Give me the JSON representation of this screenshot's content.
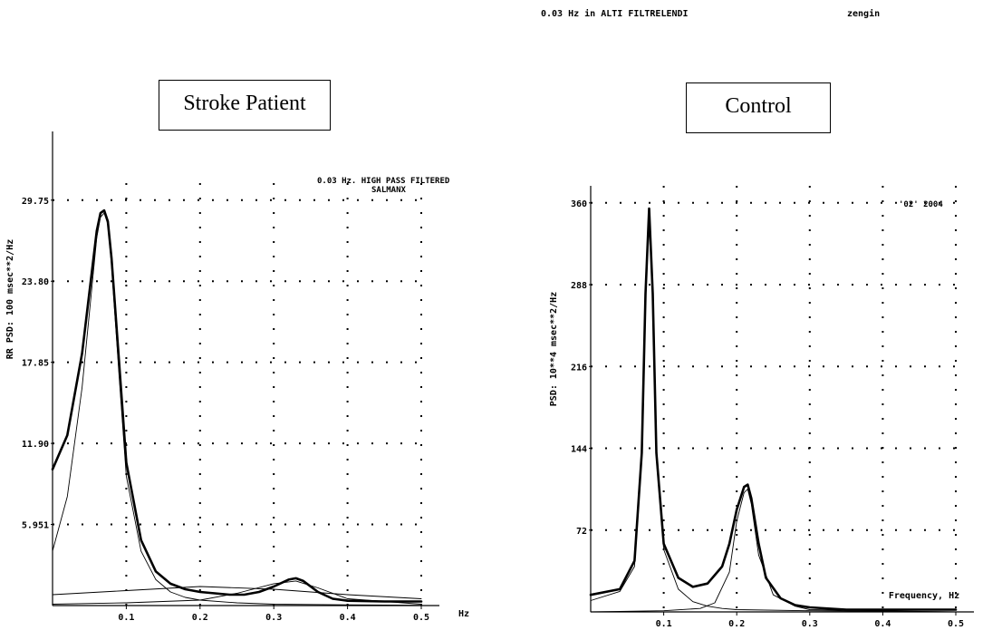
{
  "top_header": {
    "left": "0.03 Hz in ALTI FILTRELENDI",
    "right": "zengin"
  },
  "chart_data": [
    {
      "type": "line",
      "title": "Stroke Patient",
      "annotation": "0.03 Hz. HIGH PASS FILTERED",
      "annotation_sub": "SALMANX",
      "ylabel": "RR PSD: 100 msec**2/Hz",
      "xlabel": "Hz",
      "ylim": [
        0,
        31
      ],
      "xlim": [
        0,
        0.5
      ],
      "x_ticks": [
        "0.1",
        "0.2",
        "0.3",
        "0.4",
        "0.5"
      ],
      "y_ticks": [
        "5.951",
        "11.90",
        "17.85",
        "23.80",
        "29.75"
      ],
      "y_tick_values": [
        5.951,
        11.9,
        17.85,
        23.8,
        29.75
      ],
      "grid": true,
      "series": [
        {
          "style": "thick",
          "x": [
            0.0,
            0.02,
            0.04,
            0.05,
            0.06,
            0.065,
            0.07,
            0.075,
            0.08,
            0.09,
            0.1,
            0.12,
            0.14,
            0.16,
            0.18,
            0.2,
            0.22,
            0.24,
            0.26,
            0.28,
            0.3,
            0.32,
            0.33,
            0.34,
            0.36,
            0.38,
            0.4,
            0.45,
            0.5
          ],
          "y": [
            10.0,
            12.5,
            18.5,
            23.0,
            27.5,
            28.8,
            29.0,
            28.2,
            25.5,
            18.0,
            10.5,
            4.8,
            2.5,
            1.6,
            1.2,
            1.0,
            0.9,
            0.8,
            0.8,
            1.0,
            1.4,
            1.9,
            2.0,
            1.8,
            1.0,
            0.5,
            0.35,
            0.3,
            0.3
          ]
        },
        {
          "style": "thin",
          "x": [
            0.0,
            0.02,
            0.04,
            0.05,
            0.06,
            0.065,
            0.07,
            0.075,
            0.08,
            0.09,
            0.1,
            0.12,
            0.14,
            0.16,
            0.18,
            0.2,
            0.25,
            0.3,
            0.4,
            0.5
          ],
          "y": [
            4.0,
            8.0,
            16.0,
            21.5,
            27.0,
            28.5,
            28.8,
            28.0,
            25.0,
            17.0,
            9.5,
            4.0,
            1.9,
            1.0,
            0.6,
            0.4,
            0.2,
            0.1,
            0.05,
            0.02
          ]
        },
        {
          "style": "thin",
          "x": [
            0.0,
            0.1,
            0.2,
            0.3,
            0.4,
            0.5
          ],
          "y": [
            0.8,
            1.1,
            1.4,
            1.2,
            0.8,
            0.5
          ]
        },
        {
          "style": "thin",
          "x": [
            0.0,
            0.1,
            0.2,
            0.25,
            0.3,
            0.33,
            0.36,
            0.4,
            0.5
          ],
          "y": [
            0.1,
            0.2,
            0.4,
            0.9,
            1.6,
            1.8,
            1.3,
            0.5,
            0.1
          ]
        }
      ]
    },
    {
      "type": "line",
      "title": "Control",
      "ylabel": "PSD: 10**4 msec**2/Hz",
      "xlabel": "Frequency, Hz",
      "annotation": "'02' 2004",
      "ylim": [
        0,
        375
      ],
      "xlim": [
        0,
        0.5
      ],
      "x_ticks": [
        "0.1",
        "0.2",
        "0.3",
        "0.4",
        "0.5"
      ],
      "y_ticks": [
        "72",
        "144",
        "216",
        "288",
        "360"
      ],
      "y_tick_values": [
        72,
        144,
        216,
        288,
        360
      ],
      "grid": true,
      "series": [
        {
          "style": "thick",
          "x": [
            0.0,
            0.04,
            0.06,
            0.07,
            0.075,
            0.08,
            0.085,
            0.09,
            0.1,
            0.12,
            0.14,
            0.16,
            0.18,
            0.19,
            0.2,
            0.21,
            0.215,
            0.22,
            0.23,
            0.24,
            0.26,
            0.28,
            0.3,
            0.35,
            0.4,
            0.5
          ],
          "y": [
            15,
            20,
            45,
            140,
            280,
            355,
            280,
            140,
            60,
            30,
            22,
            25,
            40,
            60,
            90,
            110,
            112,
            100,
            60,
            30,
            12,
            6,
            4,
            2,
            2,
            2
          ]
        },
        {
          "style": "thin",
          "x": [
            0.0,
            0.04,
            0.06,
            0.07,
            0.075,
            0.08,
            0.085,
            0.09,
            0.1,
            0.12,
            0.14,
            0.16,
            0.18,
            0.2,
            0.3,
            0.5
          ],
          "y": [
            10,
            18,
            40,
            135,
            275,
            350,
            275,
            135,
            55,
            20,
            9,
            5,
            3,
            2,
            1,
            0
          ]
        },
        {
          "style": "thin",
          "x": [
            0.0,
            0.1,
            0.15,
            0.17,
            0.19,
            0.2,
            0.21,
            0.215,
            0.22,
            0.23,
            0.25,
            0.28,
            0.3,
            0.5
          ],
          "y": [
            0,
            1,
            3,
            8,
            35,
            80,
            105,
            108,
            95,
            50,
            15,
            5,
            2,
            0
          ]
        }
      ]
    }
  ]
}
